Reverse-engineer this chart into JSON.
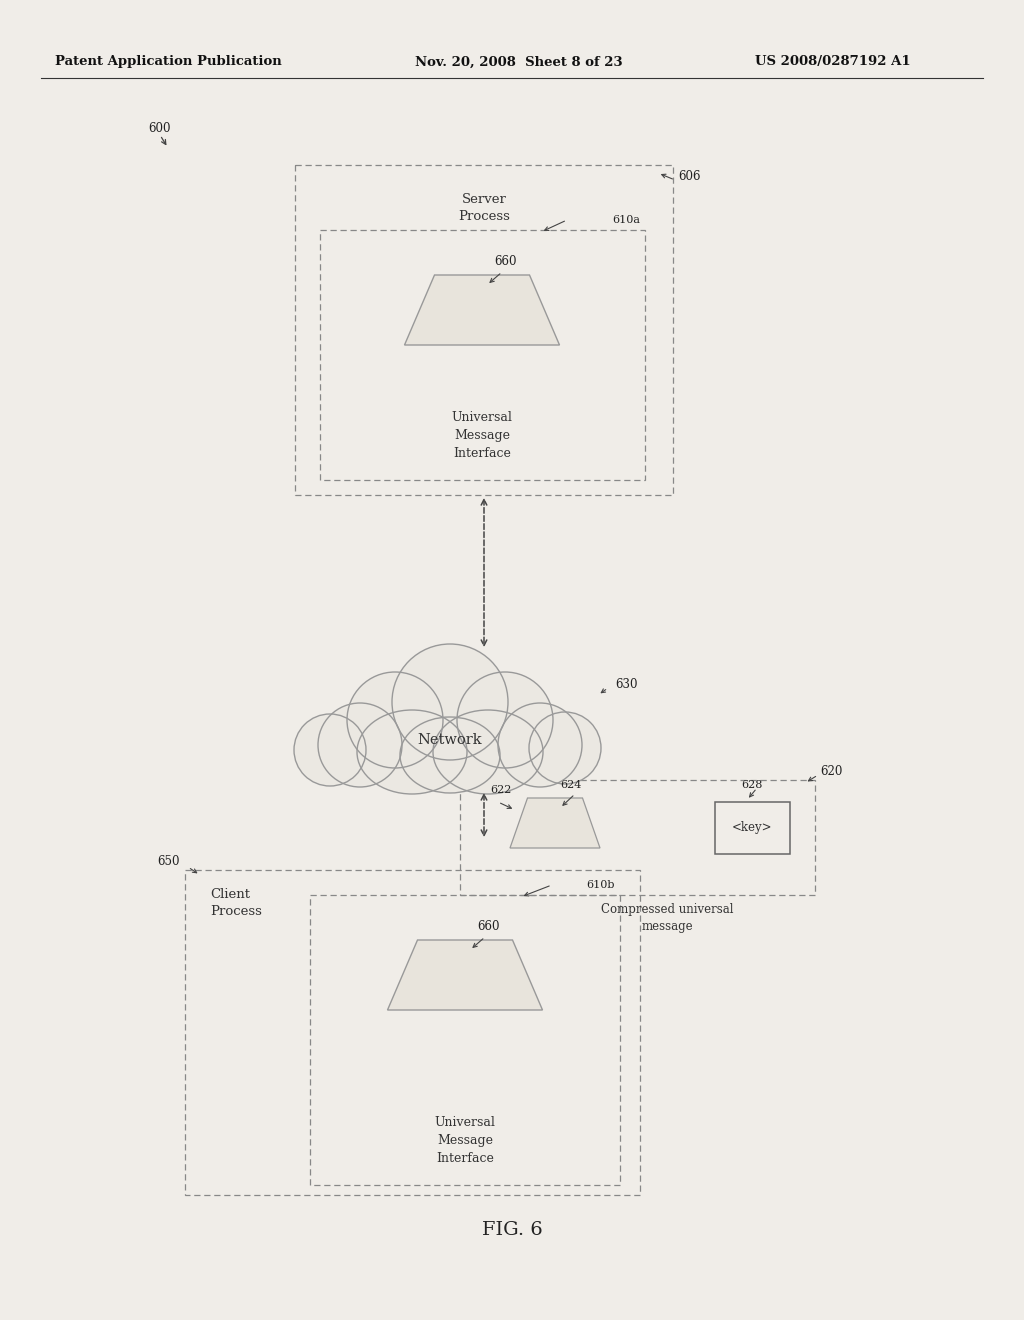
{
  "header_left": "Patent Application Publication",
  "header_mid": "Nov. 20, 2008  Sheet 8 of 23",
  "header_right": "US 2008/0287192 A1",
  "fig_label": "FIG. 6",
  "bg_color": "#f0ede8",
  "label_600": "600",
  "label_606": "606",
  "label_610a": "610a",
  "label_660a": "660",
  "label_umi_a": "Universal\nMessage\nInterface",
  "label_server": "Server\nProcess",
  "label_630": "630",
  "label_network": "Network",
  "label_620": "620",
  "label_622": "622",
  "label_624": "624",
  "label_628": "628",
  "label_key": "<key>",
  "label_compressed": "Compressed universal\nmessage",
  "label_650": "650",
  "label_client": "Client\nProcess",
  "label_610b": "610b",
  "label_660b": "660",
  "label_umi_b": "Universal\nMessage\nInterface"
}
